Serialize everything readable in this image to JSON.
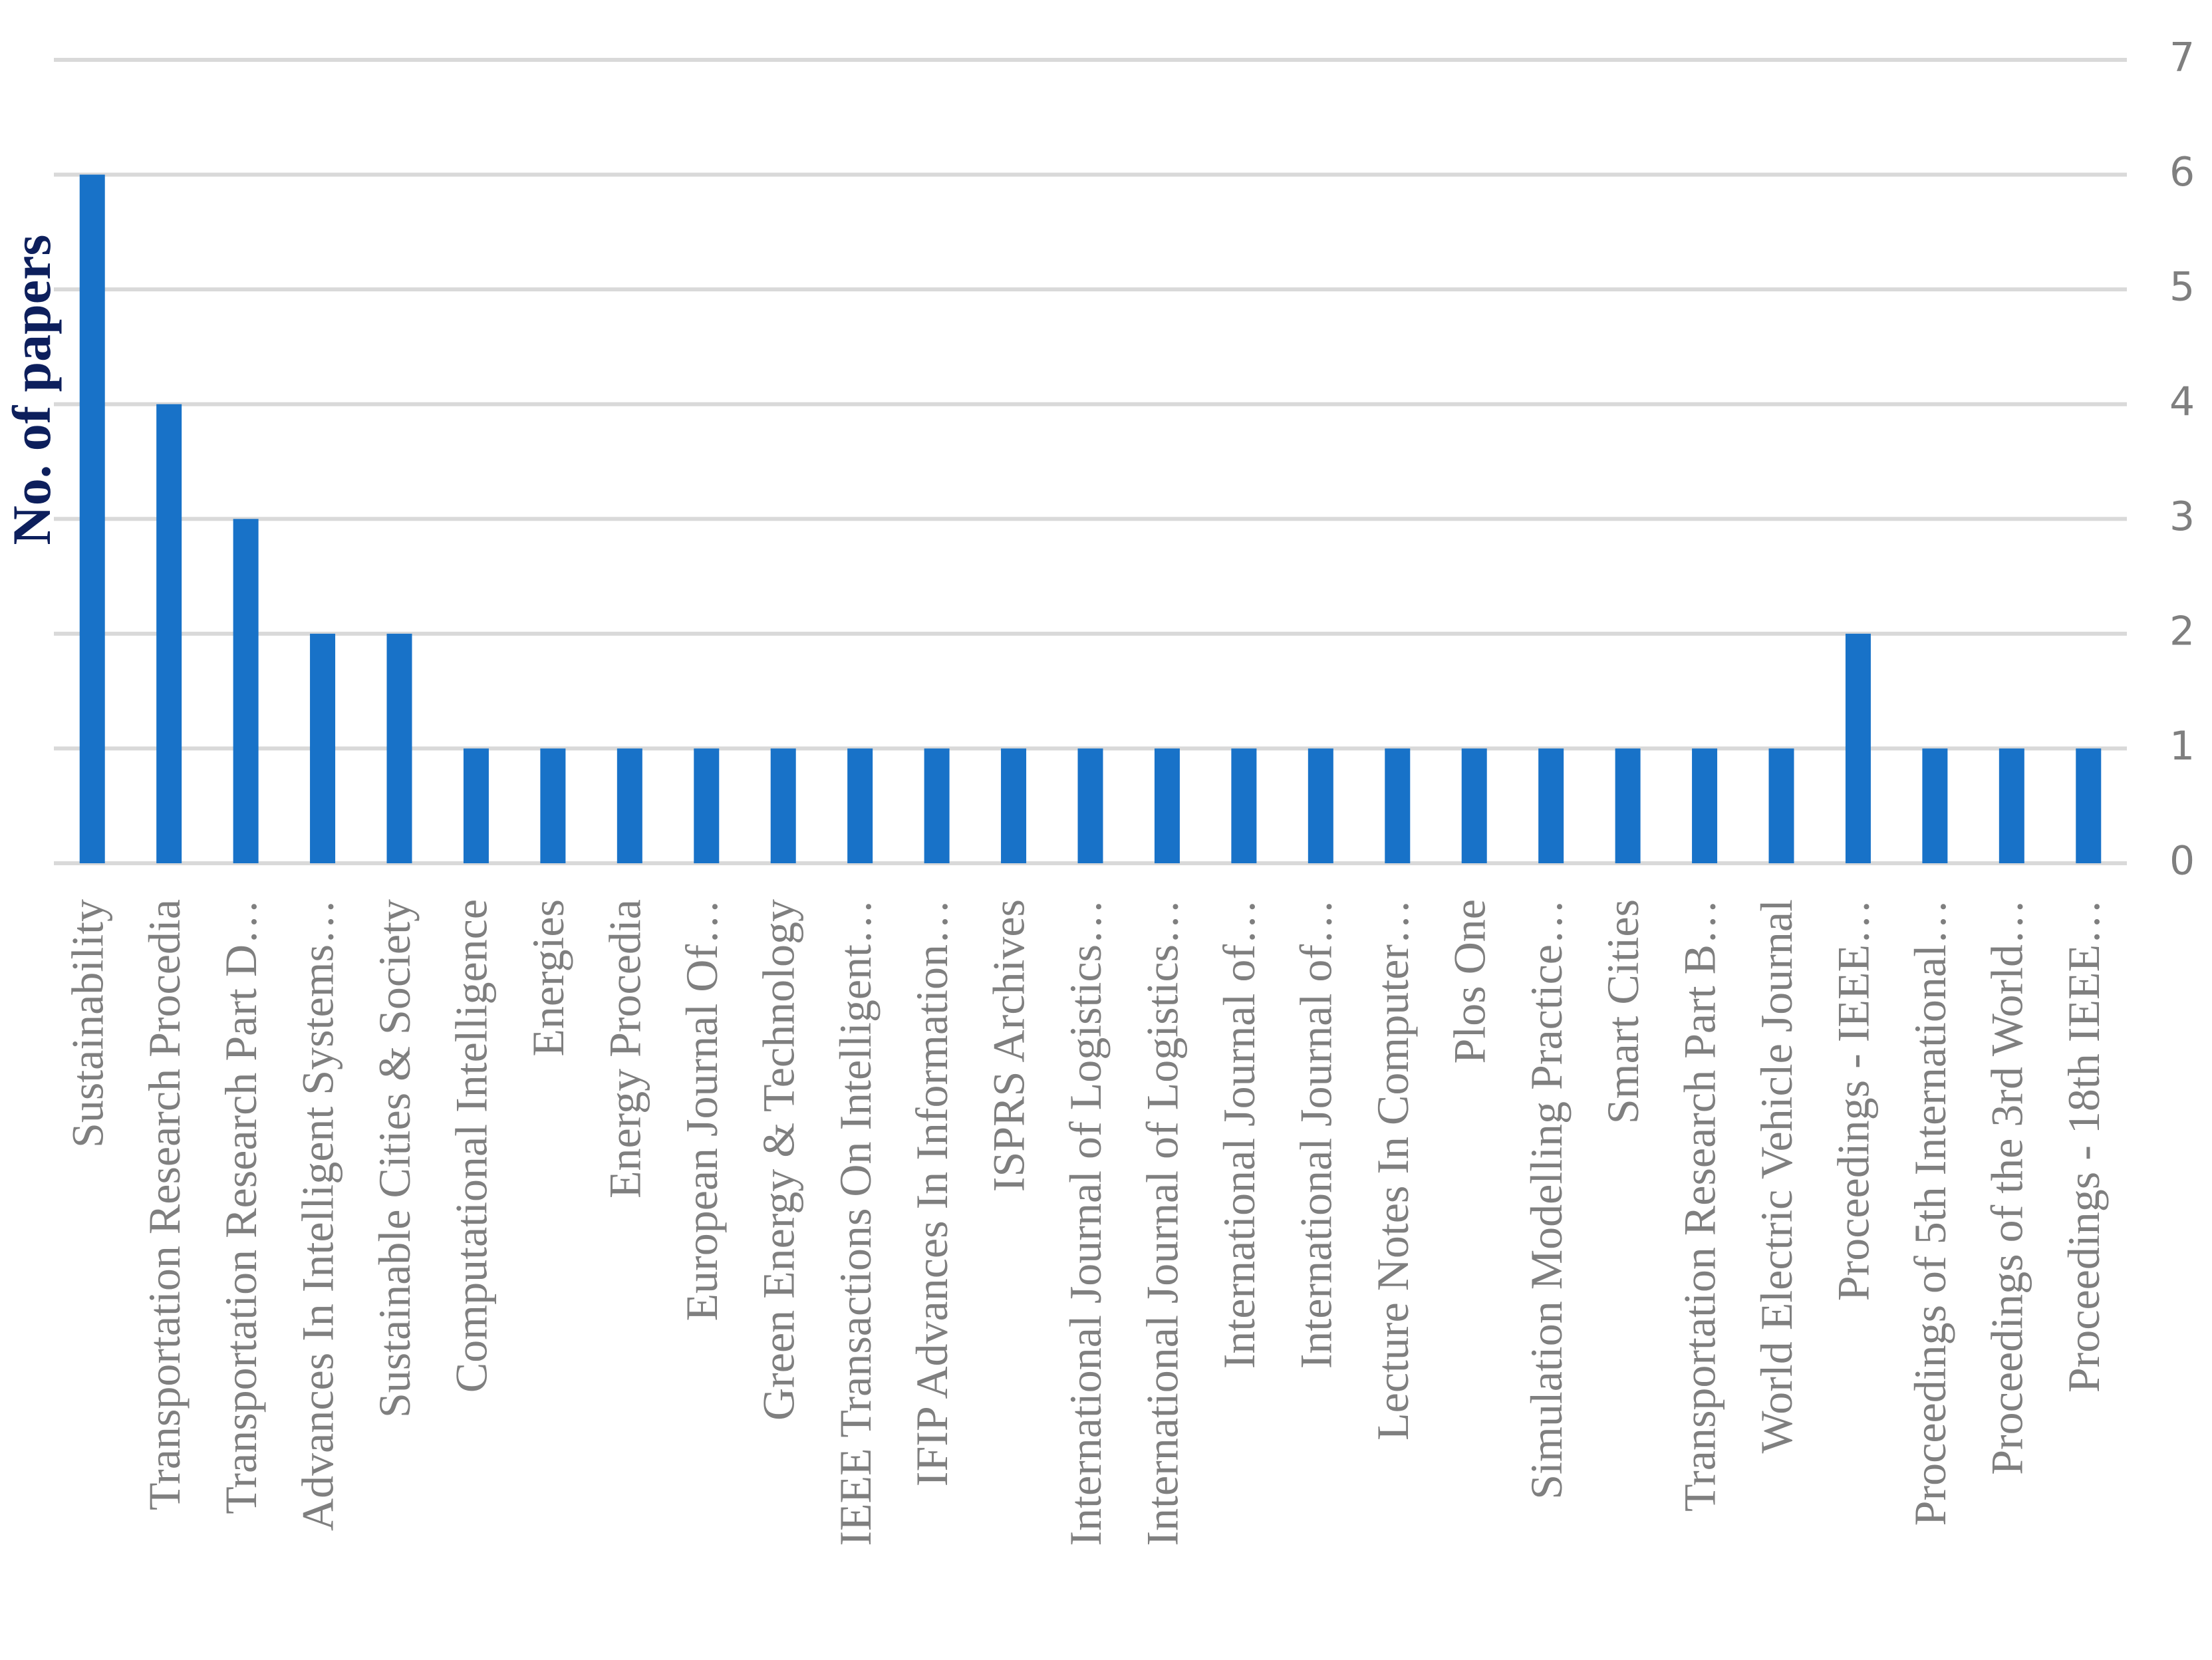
{
  "chart_data": {
    "type": "bar",
    "y_label": "No. of papers",
    "categories": [
      "Sustainability",
      "Transportation Research Procedia",
      "Transportation Research Part D…",
      "Advances In Intelligent Systems…",
      "Sustainable Cities & Society",
      "Computational Intelligence",
      "Energies",
      "Energy Procedia",
      "European Journal Of…",
      "Green Energy & Technology",
      "IEEE Transactions On Intelligent…",
      "IFIP Advances In Information…",
      "ISPRS Archives",
      "International Journal of Logistics…",
      "International Journal of Logistics…",
      "International Journal of…",
      "International Journal of…",
      "Lecture Notes In Computer…",
      "Plos One",
      "Simulation Modelling Practice…",
      "Smart Cities",
      "Transportation Research Part B…",
      "World Electric Vehicle Journal",
      "Proceedings -  IEEE…",
      "Proceedings of 5th International…",
      "Proceedings of the 3rd World…",
      "Proceedings - 18th IEEE…"
    ],
    "values": [
      6,
      4,
      3,
      2,
      2,
      1,
      1,
      1,
      1,
      1,
      1,
      1,
      1,
      1,
      1,
      1,
      1,
      1,
      1,
      1,
      1,
      1,
      1,
      2,
      1,
      1,
      1
    ],
    "color": "#1872c8",
    "ylim": [
      0,
      7
    ],
    "yticks": [
      0,
      1,
      2,
      3,
      4,
      5,
      6,
      7
    ],
    "grid": true
  }
}
